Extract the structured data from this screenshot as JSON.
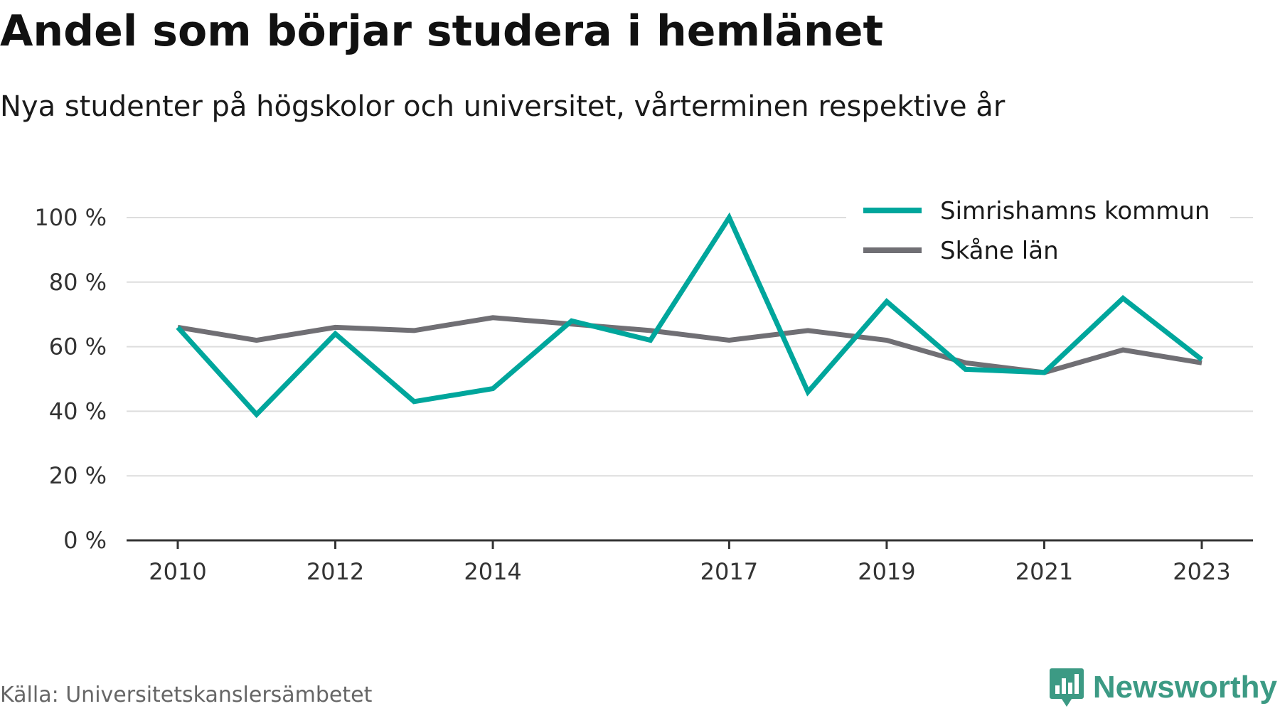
{
  "title": "Andel som börjar studera i hemlänet",
  "subtitle": "Nya studenter på högskolor och universitet, vårterminen respektive år",
  "source": "Källa: Universitetskanslersämbetet",
  "brand": {
    "name": "Newsworthy",
    "icon": "bar-chart-badge-icon",
    "color": "#3c9a84"
  },
  "colors": {
    "grid": "#dddddd",
    "axis": "#333333",
    "tick_text": "#333333"
  },
  "chart_data": {
    "type": "line",
    "title": "Andel som börjar studera i hemlänet",
    "subtitle": "Nya studenter på högskolor och universitet, vårterminen respektive år",
    "xlabel": "",
    "ylabel": "",
    "x": [
      2010,
      2011,
      2012,
      2013,
      2014,
      2015,
      2016,
      2017,
      2018,
      2019,
      2020,
      2021,
      2022,
      2023
    ],
    "x_tick_labels": [
      "2010",
      "2012",
      "2014",
      "2017",
      "2019",
      "2021",
      "2023"
    ],
    "y_ticks": [
      0,
      20,
      40,
      60,
      80,
      100
    ],
    "y_tick_suffix": " %",
    "ylim": [
      0,
      100
    ],
    "grid": true,
    "legend_position": "top-right",
    "series": [
      {
        "name": "Simrishamns kommun",
        "color": "#00a69c",
        "values": [
          66,
          39,
          64,
          43,
          47,
          68,
          62,
          100,
          46,
          74,
          53,
          52,
          75,
          56
        ]
      },
      {
        "name": "Skåne län",
        "color": "#706f74",
        "values": [
          66,
          62,
          66,
          65,
          69,
          67,
          65,
          62,
          65,
          62,
          55,
          52,
          59,
          55
        ]
      }
    ]
  }
}
